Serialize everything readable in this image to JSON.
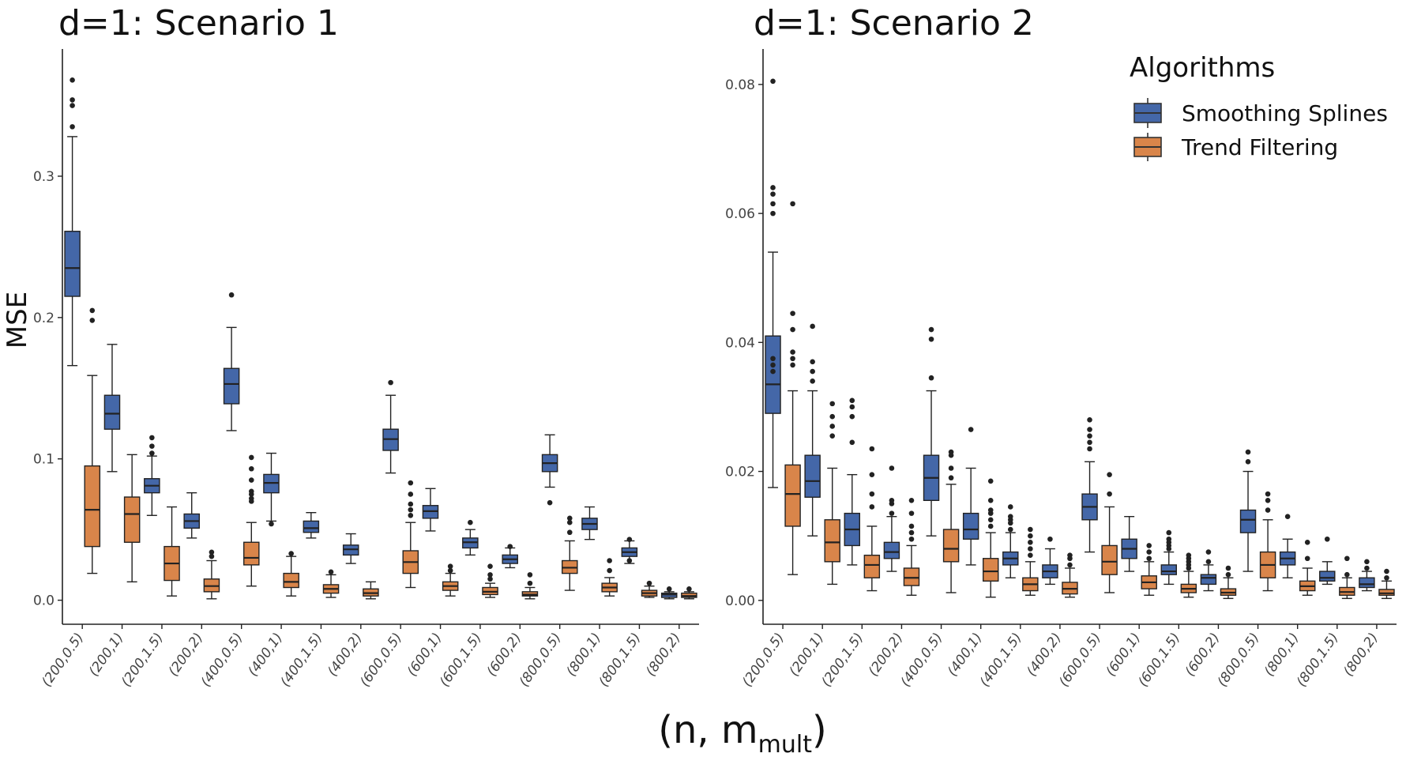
{
  "chart_data": [
    {
      "type": "box",
      "title": "d=1: Scenario 1",
      "ylabel": "MSE",
      "ylim": [
        -0.017,
        0.39
      ],
      "yticks": [
        0.0,
        0.1,
        0.2,
        0.3
      ],
      "ytick_labels": [
        "0.0",
        "0.1",
        "0.2",
        "0.3"
      ],
      "categories": [
        "(200,0.5)",
        "(200,1)",
        "(200,1.5)",
        "(200,2)",
        "(400,0.5)",
        "(400,1)",
        "(400,1.5)",
        "(400,2)",
        "(600,0.5)",
        "(600,1)",
        "(600,1.5)",
        "(600,2)",
        "(800,0.5)",
        "(800,1)",
        "(800,1.5)",
        "(800,2)"
      ],
      "series": [
        {
          "name": "Smoothing Splines",
          "color": "#4467a8",
          "boxes": [
            {
              "low": 0.166,
              "q1": 0.215,
              "med": 0.235,
              "q3": 0.261,
              "high": 0.328,
              "outliers": [
                0.335,
                0.35,
                0.354,
                0.368
              ]
            },
            {
              "low": 0.091,
              "q1": 0.121,
              "med": 0.132,
              "q3": 0.145,
              "high": 0.181,
              "outliers": []
            },
            {
              "low": 0.06,
              "q1": 0.076,
              "med": 0.081,
              "q3": 0.086,
              "high": 0.102,
              "outliers": [
                0.104,
                0.109,
                0.115
              ]
            },
            {
              "low": 0.044,
              "q1": 0.051,
              "med": 0.056,
              "q3": 0.061,
              "high": 0.076,
              "outliers": []
            },
            {
              "low": 0.12,
              "q1": 0.139,
              "med": 0.153,
              "q3": 0.164,
              "high": 0.193,
              "outliers": [
                0.216
              ]
            },
            {
              "low": 0.056,
              "q1": 0.076,
              "med": 0.083,
              "q3": 0.089,
              "high": 0.104,
              "outliers": [
                0.054
              ]
            },
            {
              "low": 0.044,
              "q1": 0.048,
              "med": 0.051,
              "q3": 0.056,
              "high": 0.062,
              "outliers": []
            },
            {
              "low": 0.026,
              "q1": 0.032,
              "med": 0.036,
              "q3": 0.039,
              "high": 0.047,
              "outliers": []
            },
            {
              "low": 0.09,
              "q1": 0.106,
              "med": 0.114,
              "q3": 0.121,
              "high": 0.145,
              "outliers": [
                0.154
              ]
            },
            {
              "low": 0.049,
              "q1": 0.058,
              "med": 0.063,
              "q3": 0.067,
              "high": 0.079,
              "outliers": []
            },
            {
              "low": 0.032,
              "q1": 0.037,
              "med": 0.041,
              "q3": 0.044,
              "high": 0.05,
              "outliers": [
                0.055
              ]
            },
            {
              "low": 0.023,
              "q1": 0.026,
              "med": 0.029,
              "q3": 0.032,
              "high": 0.037,
              "outliers": [
                0.038
              ]
            },
            {
              "low": 0.08,
              "q1": 0.091,
              "med": 0.097,
              "q3": 0.103,
              "high": 0.117,
              "outliers": [
                0.069
              ]
            },
            {
              "low": 0.043,
              "q1": 0.05,
              "med": 0.054,
              "q3": 0.058,
              "high": 0.066,
              "outliers": []
            },
            {
              "low": 0.026,
              "q1": 0.031,
              "med": 0.034,
              "q3": 0.037,
              "high": 0.042,
              "outliers": [
                0.028,
                0.043
              ]
            },
            {
              "low": 0.001,
              "q1": 0.002,
              "med": 0.004,
              "q3": 0.005,
              "high": 0.006,
              "outliers": [
                0.008
              ]
            }
          ]
        },
        {
          "name": "Trend Filtering",
          "color": "#d9854a",
          "boxes": [
            {
              "low": 0.019,
              "q1": 0.038,
              "med": 0.064,
              "q3": 0.095,
              "high": 0.159,
              "outliers": [
                0.198,
                0.205
              ]
            },
            {
              "low": 0.013,
              "q1": 0.041,
              "med": 0.061,
              "q3": 0.073,
              "high": 0.103,
              "outliers": []
            },
            {
              "low": 0.003,
              "q1": 0.014,
              "med": 0.026,
              "q3": 0.038,
              "high": 0.066,
              "outliers": []
            },
            {
              "low": 0.001,
              "q1": 0.006,
              "med": 0.01,
              "q3": 0.015,
              "high": 0.028,
              "outliers": [
                0.031,
                0.034
              ]
            },
            {
              "low": 0.01,
              "q1": 0.025,
              "med": 0.03,
              "q3": 0.041,
              "high": 0.055,
              "outliers": [
                0.07,
                0.072,
                0.075,
                0.077,
                0.085,
                0.093,
                0.101
              ]
            },
            {
              "low": 0.003,
              "q1": 0.009,
              "med": 0.013,
              "q3": 0.019,
              "high": 0.031,
              "outliers": [
                0.033
              ]
            },
            {
              "low": 0.002,
              "q1": 0.005,
              "med": 0.008,
              "q3": 0.011,
              "high": 0.018,
              "outliers": [
                0.02
              ]
            },
            {
              "low": 0.001,
              "q1": 0.003,
              "med": 0.005,
              "q3": 0.008,
              "high": 0.013,
              "outliers": []
            },
            {
              "low": 0.009,
              "q1": 0.019,
              "med": 0.027,
              "q3": 0.035,
              "high": 0.055,
              "outliers": [
                0.06,
                0.064,
                0.068,
                0.075,
                0.083
              ]
            },
            {
              "low": 0.003,
              "q1": 0.007,
              "med": 0.01,
              "q3": 0.013,
              "high": 0.019,
              "outliers": [
                0.021,
                0.024
              ]
            },
            {
              "low": 0.002,
              "q1": 0.004,
              "med": 0.006,
              "q3": 0.009,
              "high": 0.012,
              "outliers": [
                0.015,
                0.018,
                0.024
              ]
            },
            {
              "low": 0.001,
              "q1": 0.003,
              "med": 0.004,
              "q3": 0.006,
              "high": 0.009,
              "outliers": [
                0.012,
                0.018
              ]
            },
            {
              "low": 0.007,
              "q1": 0.019,
              "med": 0.023,
              "q3": 0.028,
              "high": 0.042,
              "outliers": [
                0.048,
                0.055,
                0.058
              ]
            },
            {
              "low": 0.003,
              "q1": 0.006,
              "med": 0.009,
              "q3": 0.012,
              "high": 0.016,
              "outliers": [
                0.021,
                0.028
              ]
            },
            {
              "low": 0.002,
              "q1": 0.003,
              "med": 0.005,
              "q3": 0.007,
              "high": 0.01,
              "outliers": [
                0.012
              ]
            },
            {
              "low": 0.001,
              "q1": 0.002,
              "med": 0.003,
              "q3": 0.005,
              "high": 0.006,
              "outliers": [
                0.008
              ]
            }
          ]
        }
      ]
    },
    {
      "type": "box",
      "title": "d=1: Scenario 2",
      "ylabel": "",
      "ylim": [
        -0.0037,
        0.0855
      ],
      "yticks": [
        0.0,
        0.02,
        0.04,
        0.06,
        0.08
      ],
      "ytick_labels": [
        "0.00",
        "0.02",
        "0.04",
        "0.06",
        "0.08"
      ],
      "categories": [
        "(200,0.5)",
        "(200,1)",
        "(200,1.5)",
        "(200,2)",
        "(400,0.5)",
        "(400,1)",
        "(400,1.5)",
        "(400,2)",
        "(600,0.5)",
        "(600,1)",
        "(600,1.5)",
        "(600,2)",
        "(800,0.5)",
        "(800,1)",
        "(800,1.5)",
        "(800,2)"
      ],
      "series": [
        {
          "name": "Smoothing Splines",
          "color": "#4467a8",
          "boxes": [
            {
              "low": 0.0175,
              "q1": 0.029,
              "med": 0.0335,
              "q3": 0.041,
              "high": 0.054,
              "outliers": [
                0.0355,
                0.0365,
                0.0375,
                0.06,
                0.0615,
                0.063,
                0.064,
                0.0805
              ]
            },
            {
              "low": 0.01,
              "q1": 0.016,
              "med": 0.0185,
              "q3": 0.0225,
              "high": 0.0325,
              "outliers": [
                0.034,
                0.0355,
                0.037,
                0.0425
              ]
            },
            {
              "low": 0.0055,
              "q1": 0.0085,
              "med": 0.011,
              "q3": 0.0135,
              "high": 0.0195,
              "outliers": [
                0.0245,
                0.0285,
                0.03,
                0.031
              ]
            },
            {
              "low": 0.0045,
              "q1": 0.0065,
              "med": 0.0075,
              "q3": 0.009,
              "high": 0.013,
              "outliers": [
                0.0135,
                0.015,
                0.0155,
                0.0205
              ]
            },
            {
              "low": 0.01,
              "q1": 0.0155,
              "med": 0.019,
              "q3": 0.0225,
              "high": 0.0325,
              "outliers": [
                0.0345,
                0.0405,
                0.042
              ]
            },
            {
              "low": 0.0055,
              "q1": 0.0095,
              "med": 0.011,
              "q3": 0.0135,
              "high": 0.0205,
              "outliers": [
                0.0265
              ]
            },
            {
              "low": 0.0035,
              "q1": 0.0055,
              "med": 0.0065,
              "q3": 0.0075,
              "high": 0.0105,
              "outliers": [
                0.011,
                0.012,
                0.0125,
                0.013,
                0.0145
              ]
            },
            {
              "low": 0.0025,
              "q1": 0.0035,
              "med": 0.0045,
              "q3": 0.0055,
              "high": 0.008,
              "outliers": [
                0.0095
              ]
            },
            {
              "low": 0.0075,
              "q1": 0.0125,
              "med": 0.0145,
              "q3": 0.0165,
              "high": 0.0215,
              "outliers": [
                0.0235,
                0.0245,
                0.0255,
                0.0265,
                0.028
              ]
            },
            {
              "low": 0.0045,
              "q1": 0.0065,
              "med": 0.008,
              "q3": 0.0095,
              "high": 0.013,
              "outliers": []
            },
            {
              "low": 0.0025,
              "q1": 0.004,
              "med": 0.0045,
              "q3": 0.0055,
              "high": 0.0075,
              "outliers": [
                0.008,
                0.0085,
                0.009,
                0.0095,
                0.0105
              ]
            },
            {
              "low": 0.0015,
              "q1": 0.0025,
              "med": 0.0035,
              "q3": 0.004,
              "high": 0.0055,
              "outliers": [
                0.006,
                0.0075
              ]
            },
            {
              "low": 0.0045,
              "q1": 0.0105,
              "med": 0.0125,
              "q3": 0.014,
              "high": 0.02,
              "outliers": [
                0.0215,
                0.023
              ]
            },
            {
              "low": 0.0035,
              "q1": 0.0055,
              "med": 0.0065,
              "q3": 0.0075,
              "high": 0.0095,
              "outliers": [
                0.013
              ]
            },
            {
              "low": 0.0025,
              "q1": 0.003,
              "med": 0.0035,
              "q3": 0.0045,
              "high": 0.006,
              "outliers": [
                0.0095
              ]
            },
            {
              "low": 0.0015,
              "q1": 0.002,
              "med": 0.0025,
              "q3": 0.0035,
              "high": 0.0045,
              "outliers": [
                0.005,
                0.006
              ]
            }
          ]
        },
        {
          "name": "Trend Filtering",
          "color": "#d9854a",
          "boxes": [
            {
              "low": 0.004,
              "q1": 0.0115,
              "med": 0.0165,
              "q3": 0.021,
              "high": 0.0325,
              "outliers": [
                0.0365,
                0.0375,
                0.0385,
                0.042,
                0.0445,
                0.0615
              ]
            },
            {
              "low": 0.0025,
              "q1": 0.006,
              "med": 0.009,
              "q3": 0.0125,
              "high": 0.0205,
              "outliers": [
                0.0255,
                0.027,
                0.0285,
                0.0305
              ]
            },
            {
              "low": 0.0015,
              "q1": 0.0035,
              "med": 0.0055,
              "q3": 0.007,
              "high": 0.0115,
              "outliers": [
                0.0145,
                0.0165,
                0.0195,
                0.0235
              ]
            },
            {
              "low": 0.0008,
              "q1": 0.0023,
              "med": 0.0035,
              "q3": 0.005,
              "high": 0.0085,
              "outliers": [
                0.0095,
                0.0105,
                0.0115,
                0.0135,
                0.0155
              ]
            },
            {
              "low": 0.0012,
              "q1": 0.006,
              "med": 0.008,
              "q3": 0.011,
              "high": 0.018,
              "outliers": [
                0.019,
                0.0205,
                0.0225,
                0.023
              ]
            },
            {
              "low": 0.0005,
              "q1": 0.003,
              "med": 0.0045,
              "q3": 0.0065,
              "high": 0.0105,
              "outliers": [
                0.0115,
                0.0125,
                0.0135,
                0.014,
                0.0155,
                0.0185
              ]
            },
            {
              "low": 0.0008,
              "q1": 0.0015,
              "med": 0.0025,
              "q3": 0.0035,
              "high": 0.006,
              "outliers": [
                0.007,
                0.008,
                0.009,
                0.01,
                0.011
              ]
            },
            {
              "low": 0.0005,
              "q1": 0.001,
              "med": 0.0018,
              "q3": 0.0028,
              "high": 0.005,
              "outliers": [
                0.0055,
                0.0065,
                0.007
              ]
            },
            {
              "low": 0.0012,
              "q1": 0.004,
              "med": 0.006,
              "q3": 0.0085,
              "high": 0.0145,
              "outliers": [
                0.0165,
                0.0195
              ]
            },
            {
              "low": 0.0008,
              "q1": 0.0018,
              "med": 0.0028,
              "q3": 0.0038,
              "high": 0.006,
              "outliers": [
                0.0065,
                0.0075,
                0.0085
              ]
            },
            {
              "low": 0.0005,
              "q1": 0.0012,
              "med": 0.0018,
              "q3": 0.0025,
              "high": 0.0045,
              "outliers": [
                0.005,
                0.0055,
                0.006,
                0.0065,
                0.007
              ]
            },
            {
              "low": 0.0003,
              "q1": 0.0008,
              "med": 0.0012,
              "q3": 0.0018,
              "high": 0.0035,
              "outliers": [
                0.004,
                0.005
              ]
            },
            {
              "low": 0.0015,
              "q1": 0.0035,
              "med": 0.0055,
              "q3": 0.0075,
              "high": 0.0125,
              "outliers": [
                0.014,
                0.0155,
                0.0165
              ]
            },
            {
              "low": 0.0008,
              "q1": 0.0015,
              "med": 0.0022,
              "q3": 0.003,
              "high": 0.005,
              "outliers": [
                0.0065,
                0.009
              ]
            },
            {
              "low": 0.0003,
              "q1": 0.0008,
              "med": 0.0013,
              "q3": 0.002,
              "high": 0.0035,
              "outliers": [
                0.004,
                0.0065
              ]
            },
            {
              "low": 0.0003,
              "q1": 0.0008,
              "med": 0.0011,
              "q3": 0.0017,
              "high": 0.003,
              "outliers": [
                0.0035,
                0.0045
              ]
            }
          ]
        }
      ]
    }
  ],
  "xlabel": {
    "main": "(n, m",
    "sub": "mult",
    "close": ")"
  },
  "legend": {
    "title": "Algorithms",
    "placement": "top-right",
    "items": [
      {
        "label": "Smoothing Splines",
        "color": "#4467a8"
      },
      {
        "label": "Trend Filtering",
        "color": "#d9854a"
      }
    ]
  }
}
